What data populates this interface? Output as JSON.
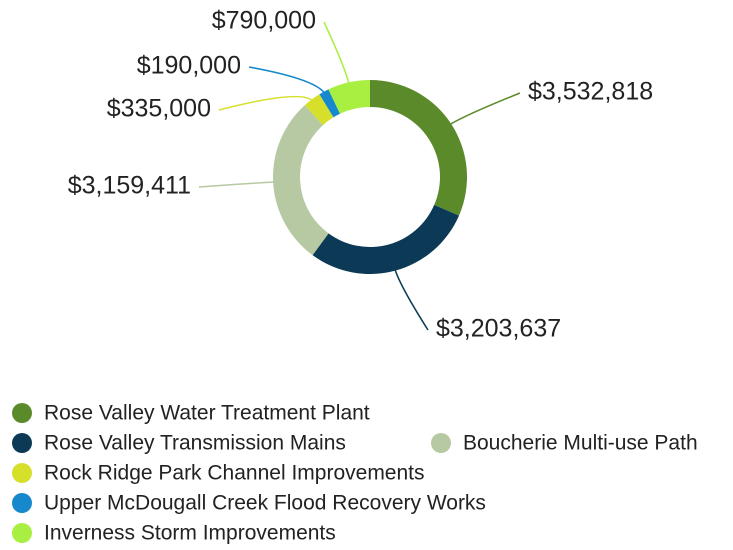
{
  "chart_data": {
    "type": "pie",
    "donut": true,
    "categories": [
      "Rose Valley Water Treatment Plant",
      "Rose Valley Transmission Mains",
      "Boucherie Multi-use Path",
      "Rock Ridge Park Channel Improvements",
      "Upper McDougall Creek Flood Recovery Works",
      "Inverness Storm Improvements"
    ],
    "values": [
      3532818,
      3203637,
      3159411,
      335000,
      190000,
      790000
    ],
    "value_labels": [
      "$3,532,818",
      "$3,203,637",
      "$3,159,411",
      "$335,000",
      "$190,000",
      "$790,000"
    ],
    "colors": [
      "#5b8a2b",
      "#0c3a56",
      "#b6c9a2",
      "#d6e02a",
      "#1689cc",
      "#a8ef42"
    ],
    "legend": "bottom"
  }
}
